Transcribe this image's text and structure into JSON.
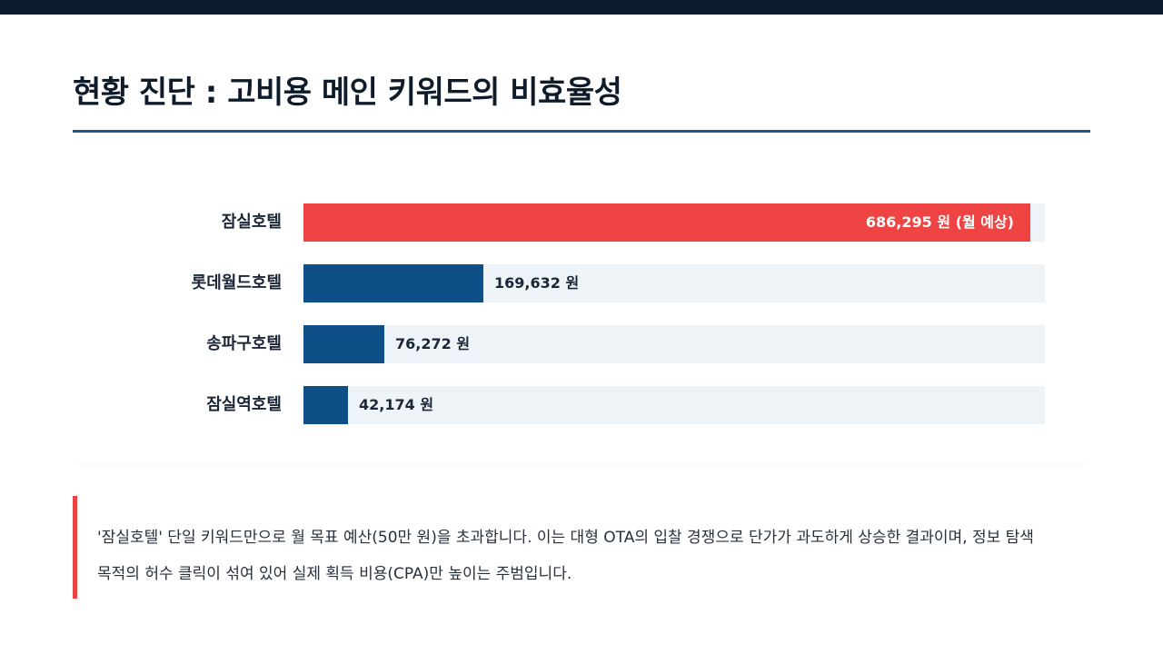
{
  "page": {
    "title": "현황 진단 : 고비용 메인 키워드의 비효율성"
  },
  "colors": {
    "highlight": "#ef4444",
    "primary": "#0d4f86",
    "track": "#eef3f8",
    "rule": "#1d5a86",
    "top_bar": "#0a1c2e"
  },
  "chart_data": {
    "type": "bar",
    "orientation": "horizontal",
    "categories": [
      "잠실호텔",
      "롯데월드호텔",
      "송파구호텔",
      "잠실역호텔"
    ],
    "values": [
      686295,
      169632,
      76272,
      42174
    ],
    "value_labels": [
      "686,295 원 (월 예상)",
      "169,632 원",
      "76,272 원",
      "42,174 원"
    ],
    "xlim": [
      0,
      700000
    ],
    "highlight_index": 0,
    "grid": false,
    "legend": false
  },
  "callout": {
    "text": "'잠실호텔' 단일 키워드만으로 월 목표 예산(50만 원)을 초과합니다. 이는 대형 OTA의 입찰 경쟁으로 단가가 과도하게 상승한 결과이며, 정보 탐색 목적의 허수 클릭이 섞여 있어 실제 획득 비용(CPA)만 높이는 주범입니다."
  }
}
